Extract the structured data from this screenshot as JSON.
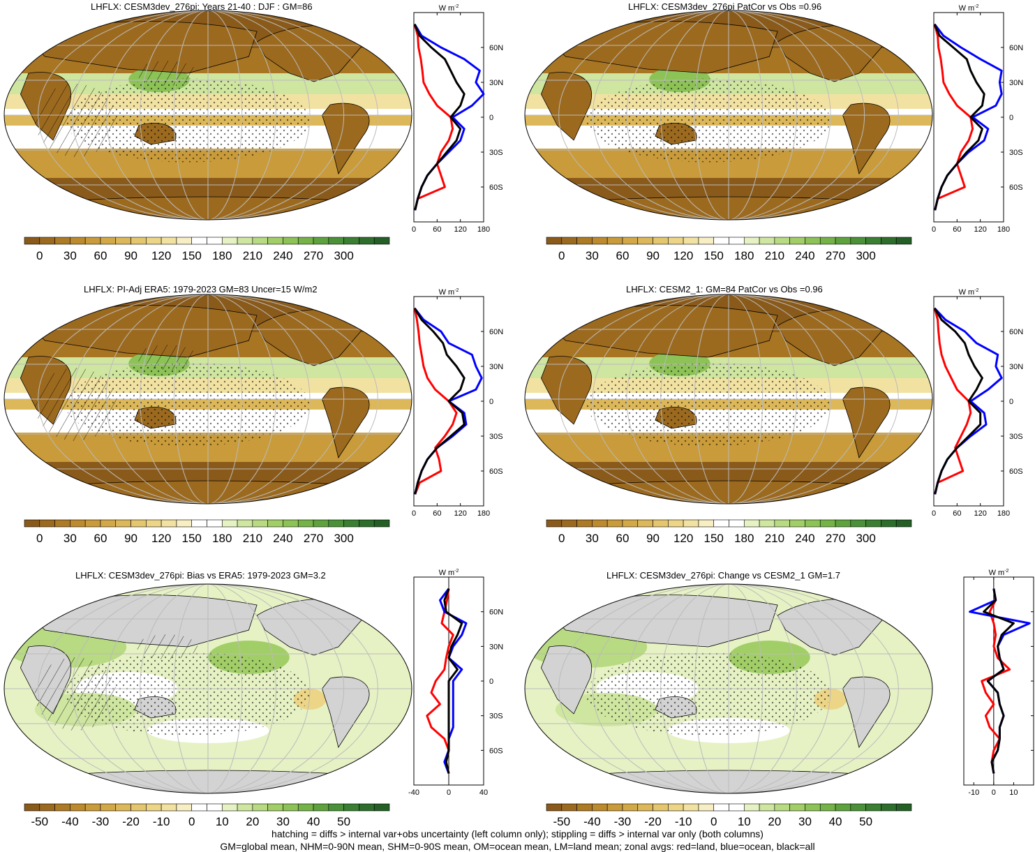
{
  "panels": [
    {
      "title": "LHFLX: CESM3dev_276pi: Years 21-40 : DJF : GM=86",
      "kind": "abs",
      "hatch": "left"
    },
    {
      "title": "LHFLX: CESM3dev_276pi PatCor vs Obs =0.96",
      "kind": "abs",
      "hatch": "none"
    },
    {
      "title": "LHFLX: PI-Adj ERA5: 1979-2023 GM=83 Uncer=15 W/m2",
      "kind": "abs",
      "hatch": "left"
    },
    {
      "title": "LHFLX: CESM2_1: GM=84 PatCor vs Obs =0.96",
      "kind": "abs",
      "hatch": "none"
    },
    {
      "title": "LHFLX: CESM3dev_276pi: Bias vs ERA5: 1979-2023 GM=3.2",
      "kind": "diff",
      "hatch": "left"
    },
    {
      "title": "LHFLX: CESM3dev_276pi: Change vs CESM2_1 GM=1.7",
      "kind": "diff",
      "hatch": "none"
    }
  ],
  "colorbar_abs": {
    "ticks": [
      "0",
      "30",
      "60",
      "90",
      "120",
      "150",
      "180",
      "210",
      "240",
      "270",
      "300"
    ],
    "colors": [
      "#8a5a1a",
      "#9c6a1f",
      "#ad7a26",
      "#bd8a2e",
      "#c99b3a",
      "#d3a948",
      "#dcb85a",
      "#e4c66e",
      "#ecd586",
      "#f2e2a2",
      "#f7eec4",
      "#ffffff",
      "#ffffff",
      "#e6f2c4",
      "#cfe6a0",
      "#b8da82",
      "#a2ce68",
      "#8cc256",
      "#75b348",
      "#5ea23e",
      "#4a9138",
      "#3a7f32",
      "#2e6e2c",
      "#245f26"
    ]
  },
  "colorbar_diff": {
    "ticks": [
      "-50",
      "-40",
      "-30",
      "-20",
      "-10",
      "0",
      "10",
      "20",
      "30",
      "40",
      "50"
    ],
    "colors": [
      "#8a5a1a",
      "#9c6a1f",
      "#ad7a26",
      "#bd8a2e",
      "#c99b3a",
      "#d3a948",
      "#dcb85a",
      "#e4c66e",
      "#ecd586",
      "#f2e2a2",
      "#f7eec4",
      "#ffffff",
      "#ffffff",
      "#e6f2c4",
      "#cfe6a0",
      "#b8da82",
      "#a2ce68",
      "#8cc256",
      "#75b348",
      "#5ea23e",
      "#4a9138",
      "#3a7f32",
      "#2e6e2c",
      "#245f26"
    ]
  },
  "zonal_unit": "W m",
  "zonal_unit_exp": "-2",
  "lat_ticks": [
    "60N",
    "30N",
    "0",
    "30S",
    "60S"
  ],
  "colors": {
    "land": "#ff0000",
    "ocean": "#0000ff",
    "all": "#000000",
    "grid": "#bbbbbb",
    "landmask": "#d3d3d3"
  },
  "chart_data": [
    {
      "type": "line",
      "xlabel": "W m-2",
      "xlim": [
        0,
        180
      ],
      "xticks": [
        "0",
        "60",
        "120",
        "180"
      ],
      "lat": [
        80,
        70,
        60,
        50,
        40,
        30,
        20,
        10,
        0,
        -10,
        -20,
        -30,
        -40,
        -50,
        -60,
        -70,
        -80
      ],
      "series": [
        {
          "color": "#ff0000",
          "values": [
            2,
            10,
            12,
            18,
            22,
            25,
            40,
            60,
            95,
            100,
            90,
            70,
            60,
            70,
            80,
            10,
            3
          ]
        },
        {
          "color": "#0000ff",
          "values": [
            2,
            20,
            70,
            130,
            170,
            160,
            180,
            150,
            100,
            130,
            120,
            90,
            60,
            35,
            20,
            10,
            3
          ]
        },
        {
          "color": "#000000",
          "values": [
            2,
            15,
            45,
            80,
            95,
            110,
            130,
            120,
            95,
            120,
            110,
            85,
            60,
            35,
            20,
            10,
            3
          ]
        }
      ]
    },
    {
      "type": "line",
      "xlabel": "W m-2",
      "xlim": [
        0,
        180
      ],
      "xticks": [
        "0",
        "60",
        "120",
        "180"
      ],
      "lat": [
        80,
        70,
        60,
        50,
        40,
        30,
        20,
        10,
        0,
        -10,
        -20,
        -30,
        -40,
        -50,
        -60,
        -70,
        -80
      ],
      "series": [
        {
          "color": "#ff0000",
          "values": [
            2,
            10,
            12,
            18,
            22,
            25,
            40,
            60,
            95,
            100,
            90,
            70,
            60,
            70,
            80,
            10,
            3
          ]
        },
        {
          "color": "#0000ff",
          "values": [
            2,
            25,
            70,
            120,
            175,
            170,
            175,
            160,
            100,
            140,
            130,
            90,
            60,
            35,
            20,
            10,
            3
          ]
        },
        {
          "color": "#000000",
          "values": [
            2,
            15,
            50,
            85,
            95,
            110,
            130,
            125,
            95,
            125,
            115,
            85,
            60,
            35,
            20,
            10,
            3
          ]
        }
      ]
    },
    {
      "type": "line",
      "xlabel": "W m-2",
      "xlim": [
        0,
        180
      ],
      "xticks": [
        "0",
        "60",
        "120",
        "180"
      ],
      "lat": [
        80,
        70,
        60,
        50,
        40,
        30,
        20,
        10,
        0,
        -10,
        -20,
        -30,
        -40,
        -50,
        -60,
        -70,
        -80
      ],
      "series": [
        {
          "color": "#ff0000",
          "values": [
            2,
            8,
            12,
            15,
            20,
            25,
            35,
            55,
            90,
            110,
            100,
            80,
            55,
            65,
            70,
            15,
            3
          ]
        },
        {
          "color": "#0000ff",
          "values": [
            2,
            25,
            70,
            90,
            150,
            160,
            175,
            160,
            90,
            130,
            135,
            100,
            60,
            35,
            20,
            10,
            3
          ]
        },
        {
          "color": "#000000",
          "values": [
            2,
            20,
            50,
            75,
            85,
            110,
            130,
            120,
            90,
            125,
            130,
            95,
            60,
            35,
            20,
            10,
            3
          ]
        }
      ]
    },
    {
      "type": "line",
      "xlabel": "W m-2",
      "xlim": [
        0,
        180
      ],
      "xticks": [
        "0",
        "60",
        "120",
        "180"
      ],
      "lat": [
        80,
        70,
        60,
        50,
        40,
        30,
        20,
        10,
        0,
        -10,
        -20,
        -30,
        -40,
        -50,
        -60,
        -70,
        -80
      ],
      "series": [
        {
          "color": "#ff0000",
          "values": [
            2,
            10,
            12,
            15,
            20,
            30,
            45,
            60,
            90,
            95,
            85,
            70,
            55,
            65,
            75,
            10,
            3
          ]
        },
        {
          "color": "#0000ff",
          "values": [
            2,
            30,
            80,
            110,
            165,
            160,
            175,
            140,
            95,
            130,
            135,
            95,
            60,
            35,
            20,
            10,
            3
          ]
        },
        {
          "color": "#000000",
          "values": [
            2,
            20,
            55,
            80,
            90,
            105,
            125,
            110,
            90,
            120,
            120,
            90,
            60,
            35,
            20,
            10,
            3
          ]
        }
      ]
    },
    {
      "type": "line",
      "xlabel": "W m-2",
      "xlim": [
        -40,
        40
      ],
      "xticks": [
        "-40",
        "0",
        "40"
      ],
      "lat": [
        80,
        70,
        60,
        50,
        40,
        30,
        20,
        10,
        0,
        -10,
        -20,
        -30,
        -40,
        -50,
        -60,
        -70,
        -80
      ],
      "series": [
        {
          "color": "#ff0000",
          "values": [
            0,
            -2,
            -5,
            -8,
            5,
            0,
            -3,
            -5,
            -15,
            -20,
            -10,
            -25,
            -20,
            -5,
            0,
            -3,
            0
          ]
        },
        {
          "color": "#0000ff",
          "values": [
            0,
            -10,
            -5,
            20,
            15,
            5,
            0,
            15,
            5,
            5,
            5,
            5,
            5,
            0,
            0,
            -5,
            0
          ]
        },
        {
          "color": "#000000",
          "values": [
            0,
            -5,
            -3,
            15,
            10,
            3,
            0,
            10,
            0,
            0,
            0,
            0,
            0,
            0,
            0,
            -3,
            0
          ]
        }
      ]
    },
    {
      "type": "line",
      "xlabel": "W m-2",
      "xlim": [
        -15,
        20
      ],
      "xticks": [
        "-10",
        "0",
        "10"
      ],
      "lat": [
        80,
        70,
        60,
        50,
        40,
        30,
        20,
        10,
        0,
        -10,
        -20,
        -30,
        -40,
        -50,
        -60,
        -70,
        -80
      ],
      "series": [
        {
          "color": "#ff0000",
          "values": [
            0,
            1,
            -2,
            0,
            1,
            0,
            2,
            8,
            -6,
            -4,
            0,
            -4,
            -2,
            3,
            0,
            -1,
            0
          ]
        },
        {
          "color": "#0000ff",
          "values": [
            0,
            1,
            -12,
            18,
            5,
            2,
            3,
            5,
            -3,
            2,
            3,
            5,
            3,
            3,
            2,
            -1,
            0
          ]
        },
        {
          "color": "#000000",
          "values": [
            0,
            1,
            -5,
            10,
            4,
            2,
            3,
            5,
            -3,
            2,
            3,
            5,
            3,
            3,
            2,
            -1,
            0
          ]
        }
      ]
    }
  ],
  "footer": {
    "line1": "hatching = diffs > internal var+obs uncertainty (left column only); stippling = diffs > internal var only (both columns)",
    "line2": "GM=global mean, NHM=0-90N mean, SHM=0-90S mean, OM=ocean mean, LM=land mean; zonal avgs: red=land, blue=ocean, black=all"
  }
}
